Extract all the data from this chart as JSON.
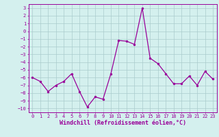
{
  "x": [
    0,
    1,
    2,
    3,
    4,
    5,
    6,
    7,
    8,
    9,
    10,
    11,
    12,
    13,
    14,
    15,
    16,
    17,
    18,
    19,
    20,
    21,
    22,
    23
  ],
  "y": [
    -6.0,
    -6.5,
    -7.8,
    -7.0,
    -6.5,
    -5.5,
    -7.8,
    -9.8,
    -8.5,
    -8.8,
    -5.5,
    -1.2,
    -1.3,
    -1.7,
    3.0,
    -3.5,
    -4.2,
    -5.5,
    -6.8,
    -6.8,
    -5.8,
    -7.0,
    -5.2,
    -6.2
  ],
  "line_color": "#990099",
  "marker": "o",
  "markersize": 2.0,
  "linewidth": 0.9,
  "xlabel": "Windchill (Refroidissement éolien,°C)",
  "xlabel_fontsize": 6.0,
  "xlim": [
    -0.5,
    23.5
  ],
  "ylim": [
    -10.5,
    3.5
  ],
  "yticks": [
    -10,
    -9,
    -8,
    -7,
    -6,
    -5,
    -4,
    -3,
    -2,
    -1,
    0,
    1,
    2,
    3
  ],
  "xticks": [
    0,
    1,
    2,
    3,
    4,
    5,
    6,
    7,
    8,
    9,
    10,
    11,
    12,
    13,
    14,
    15,
    16,
    17,
    18,
    19,
    20,
    21,
    22,
    23
  ],
  "bg_color": "#d4f0ee",
  "grid_color": "#aacccc",
  "tick_color": "#990099",
  "tick_fontsize": 5.0,
  "border_color": "#990099"
}
